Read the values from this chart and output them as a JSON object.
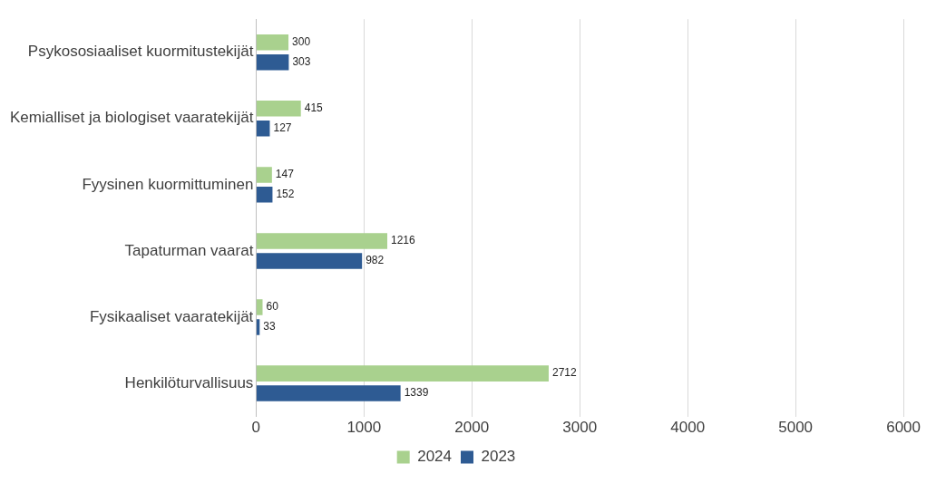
{
  "chart_data": {
    "type": "bar",
    "orientation": "horizontal",
    "categories": [
      "Psykososiaaliset kuormitustekijät",
      "Kemialliset ja biologiset vaaratekijät",
      "Fyysinen kuormittuminen",
      "Tapaturman vaarat",
      "Fysikaaliset vaaratekijät",
      "Henkilöturvallisuus"
    ],
    "series": [
      {
        "name": "2024",
        "color": "#a9d18e",
        "values": [
          300,
          415,
          147,
          1216,
          60,
          2712
        ]
      },
      {
        "name": "2023",
        "color": "#2e5b93",
        "values": [
          303,
          127,
          152,
          982,
          33,
          1339
        ]
      }
    ],
    "xlim": [
      0,
      6000
    ],
    "xticks": [
      0,
      1000,
      2000,
      3000,
      4000,
      5000,
      6000
    ],
    "grid": "x",
    "legend": "bottom",
    "data_labels": true
  }
}
